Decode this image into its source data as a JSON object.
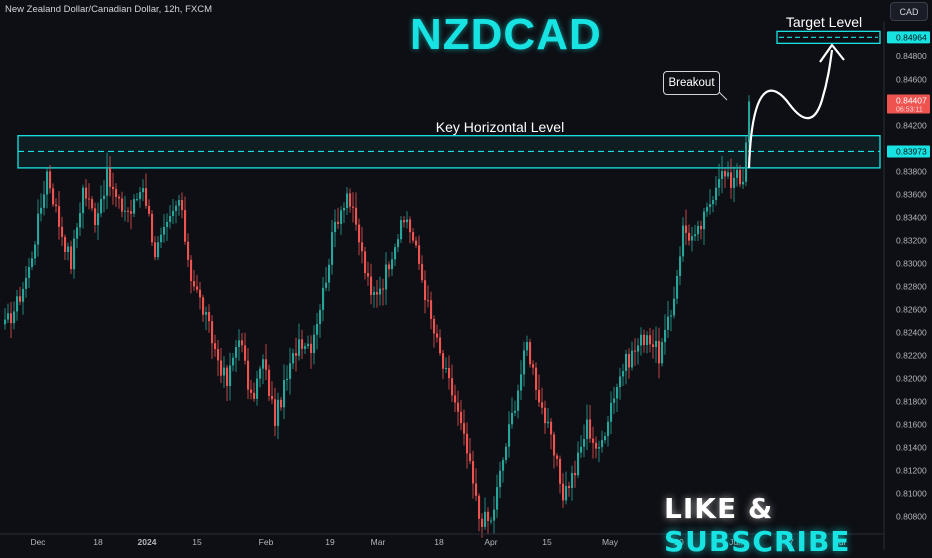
{
  "header": {
    "symbol_title": "New Zealand Dollar/Canadian Dollar, 12h, FXCM",
    "currency": "CAD"
  },
  "overlay": {
    "title": "NZDCAD",
    "breakout_label": "Breakout",
    "key_level_label": "Key Horizontal Level",
    "target_label": "Target Level",
    "cta_like": "LIKE",
    "cta_amp": " & ",
    "cta_subscribe": "SUBSCRIBE"
  },
  "colors": {
    "up": "#26a69a",
    "down": "#ef5350",
    "accent": "#18e3e3",
    "background": "#0d0f14"
  },
  "chart_data": {
    "type": "candlestick",
    "title": "",
    "x_ticks": [
      "Dec",
      "18",
      "2024",
      "15",
      "Feb",
      "19",
      "Mar",
      "18",
      "Apr",
      "15",
      "May",
      "20",
      "Jun",
      "17",
      "Jul"
    ],
    "y_ticks": [
      "0.84800",
      "0.84600",
      "0.84400",
      "0.84200",
      "0.84000",
      "0.83800",
      "0.83600",
      "0.83400",
      "0.83200",
      "0.83000",
      "0.82800",
      "0.82600",
      "0.82400",
      "0.82200",
      "0.82000",
      "0.81800",
      "0.81600",
      "0.81400",
      "0.81200",
      "0.81000",
      "0.80800"
    ],
    "ylim": [
      0.8065,
      0.8508
    ],
    "price_labels": {
      "target": "0.84964",
      "current": "0.84407",
      "countdown": "06:53:11",
      "key_level": "0.83973"
    },
    "key_zone": [
      0.8383,
      0.8411
    ],
    "key_level": 0.83973,
    "target_level": 0.84964,
    "anchors": [
      [
        0,
        0.8245
      ],
      [
        4,
        0.8265
      ],
      [
        8,
        0.8295
      ],
      [
        12,
        0.835
      ],
      [
        14,
        0.838
      ],
      [
        18,
        0.8335
      ],
      [
        22,
        0.83
      ],
      [
        26,
        0.8365
      ],
      [
        30,
        0.834
      ],
      [
        34,
        0.8375
      ],
      [
        38,
        0.835
      ],
      [
        42,
        0.8345
      ],
      [
        46,
        0.837
      ],
      [
        50,
        0.831
      ],
      [
        54,
        0.833
      ],
      [
        58,
        0.8355
      ],
      [
        62,
        0.829
      ],
      [
        66,
        0.826
      ],
      [
        70,
        0.8225
      ],
      [
        74,
        0.8195
      ],
      [
        78,
        0.824
      ],
      [
        82,
        0.818
      ],
      [
        86,
        0.8215
      ],
      [
        90,
        0.8165
      ],
      [
        94,
        0.82
      ],
      [
        98,
        0.8235
      ],
      [
        102,
        0.823
      ],
      [
        106,
        0.8275
      ],
      [
        110,
        0.8335
      ],
      [
        114,
        0.8362
      ],
      [
        118,
        0.832
      ],
      [
        122,
        0.827
      ],
      [
        126,
        0.8285
      ],
      [
        130,
        0.832
      ],
      [
        134,
        0.834
      ],
      [
        138,
        0.83
      ],
      [
        142,
        0.825
      ],
      [
        146,
        0.821
      ],
      [
        150,
        0.818
      ],
      [
        154,
        0.8135
      ],
      [
        158,
        0.808
      ],
      [
        162,
        0.8075
      ],
      [
        166,
        0.813
      ],
      [
        170,
        0.818
      ],
      [
        174,
        0.823
      ],
      [
        178,
        0.8185
      ],
      [
        182,
        0.8145
      ],
      [
        186,
        0.81
      ],
      [
        190,
        0.812
      ],
      [
        194,
        0.816
      ],
      [
        198,
        0.8135
      ],
      [
        202,
        0.818
      ],
      [
        206,
        0.821
      ],
      [
        210,
        0.8225
      ],
      [
        214,
        0.824
      ],
      [
        218,
        0.822
      ],
      [
        222,
        0.8255
      ],
      [
        226,
        0.833
      ],
      [
        230,
        0.832
      ],
      [
        234,
        0.8345
      ],
      [
        238,
        0.838
      ],
      [
        242,
        0.837
      ],
      [
        244,
        0.8385
      ],
      [
        246,
        0.8365
      ],
      [
        248,
        0.8443
      ]
    ]
  }
}
